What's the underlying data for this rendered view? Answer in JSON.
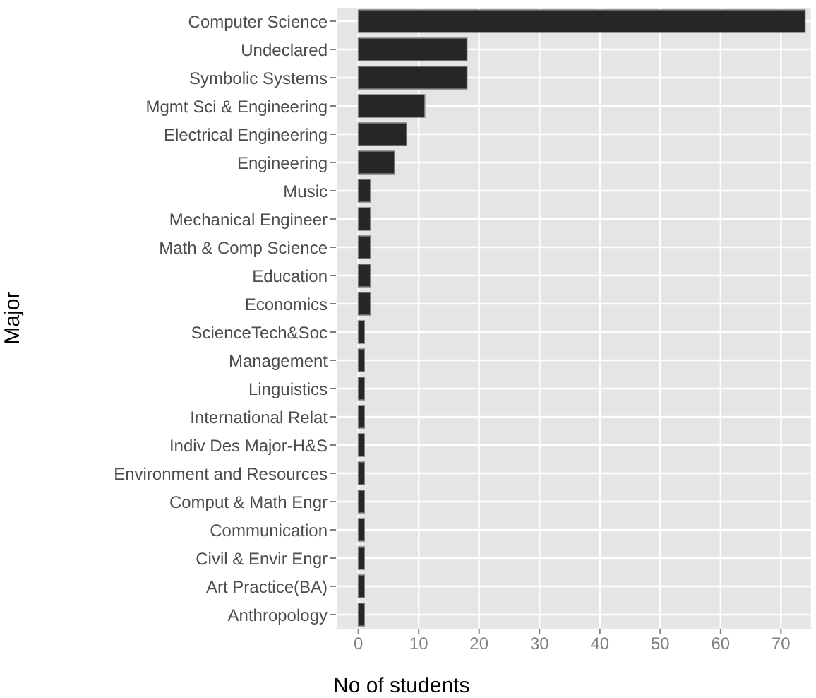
{
  "chart_data": {
    "type": "bar",
    "orientation": "horizontal",
    "xlabel": "No of students",
    "ylabel": "Major",
    "categories": [
      "Computer Science",
      "Undeclared",
      "Symbolic Systems",
      "Mgmt Sci & Engineering",
      "Electrical Engineering",
      "Engineering",
      "Music",
      "Mechanical Engineer",
      "Math & Comp Science",
      "Education",
      "Economics",
      "ScienceTech&Soc",
      "Management",
      "Linguistics",
      "International Relat",
      "Indiv Des Major-H&S",
      "Environment and Resources",
      "Comput & Math Engr",
      "Communication",
      "Civil & Envir Engr",
      "Art Practice(BA)",
      "Anthropology"
    ],
    "values": [
      74,
      18,
      18,
      11,
      8,
      6,
      2,
      2,
      2,
      2,
      2,
      1,
      1,
      1,
      1,
      1,
      1,
      1,
      1,
      1,
      1,
      1
    ],
    "color": "#262626",
    "xlim": [
      -3.7,
      75.1
    ],
    "xticks": [
      0,
      10,
      20,
      30,
      40,
      50,
      60,
      70
    ],
    "grid": true
  }
}
